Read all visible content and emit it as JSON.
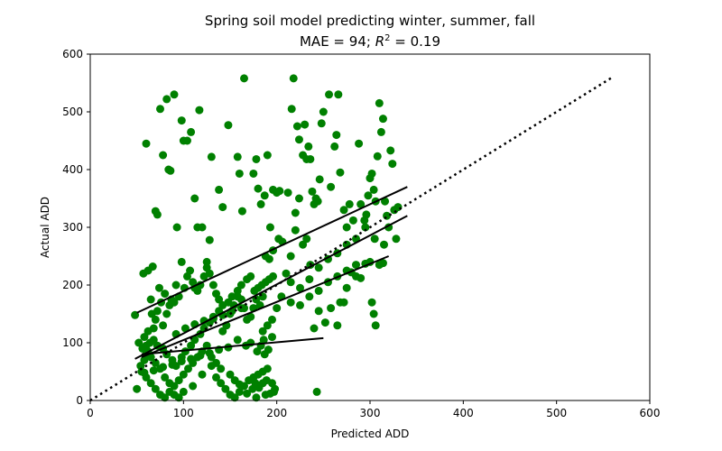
{
  "chart_data": {
    "type": "scatter",
    "title": "Spring soil model predicting winter, summer, fall",
    "subtitle_prefix": "MAE = 94; ",
    "subtitle_r": "R",
    "subtitle_exp": "2",
    "subtitle_suffix": " = 0.19",
    "xlabel": "Predicted ADD",
    "ylabel": "Actual ADD",
    "xlim": [
      0,
      600
    ],
    "ylim": [
      0,
      600
    ],
    "xticks": [
      0,
      100,
      200,
      300,
      400,
      500,
      600
    ],
    "yticks": [
      0,
      100,
      200,
      300,
      400,
      500,
      600
    ],
    "grid": false,
    "point_color": "#008000",
    "line_color": "#000000",
    "series": [
      {
        "points": [
          [
            48,
            148
          ],
          [
            57,
            220
          ],
          [
            60,
            445
          ],
          [
            62,
            225
          ],
          [
            65,
            175
          ],
          [
            67,
            232
          ],
          [
            70,
            328
          ],
          [
            72,
            322
          ],
          [
            75,
            505
          ],
          [
            78,
            425
          ],
          [
            82,
            522
          ],
          [
            84,
            400
          ],
          [
            86,
            398
          ],
          [
            90,
            530
          ],
          [
            93,
            300
          ],
          [
            98,
            485
          ],
          [
            100,
            450
          ],
          [
            104,
            450
          ],
          [
            108,
            465
          ],
          [
            112,
            350
          ],
          [
            115,
            300
          ],
          [
            117,
            503
          ],
          [
            120,
            300
          ],
          [
            125,
            240
          ],
          [
            128,
            278
          ],
          [
            130,
            422
          ],
          [
            138,
            365
          ],
          [
            142,
            335
          ],
          [
            148,
            477
          ],
          [
            158,
            422
          ],
          [
            160,
            393
          ],
          [
            163,
            328
          ],
          [
            165,
            558
          ],
          [
            175,
            393
          ],
          [
            178,
            418
          ],
          [
            180,
            367
          ],
          [
            183,
            340
          ],
          [
            187,
            355
          ],
          [
            190,
            425
          ],
          [
            193,
            300
          ],
          [
            196,
            365
          ],
          [
            200,
            360
          ],
          [
            203,
            363
          ],
          [
            212,
            360
          ],
          [
            216,
            505
          ],
          [
            218,
            558
          ],
          [
            220,
            295
          ],
          [
            222,
            475
          ],
          [
            224,
            452
          ],
          [
            228,
            425
          ],
          [
            230,
            478
          ],
          [
            232,
            418
          ],
          [
            234,
            440
          ],
          [
            236,
            418
          ],
          [
            238,
            362
          ],
          [
            240,
            340
          ],
          [
            242,
            350
          ],
          [
            244,
            345
          ],
          [
            246,
            383
          ],
          [
            248,
            480
          ],
          [
            250,
            500
          ],
          [
            256,
            530
          ],
          [
            258,
            370
          ],
          [
            262,
            440
          ],
          [
            264,
            460
          ],
          [
            266,
            530
          ],
          [
            268,
            395
          ],
          [
            272,
            330
          ],
          [
            275,
            300
          ],
          [
            278,
            340
          ],
          [
            282,
            312
          ],
          [
            288,
            445
          ],
          [
            290,
            340
          ],
          [
            294,
            312
          ],
          [
            296,
            322
          ],
          [
            298,
            355
          ],
          [
            300,
            385
          ],
          [
            302,
            393
          ],
          [
            304,
            365
          ],
          [
            306,
            345
          ],
          [
            308,
            423
          ],
          [
            310,
            515
          ],
          [
            312,
            465
          ],
          [
            314,
            488
          ],
          [
            316,
            345
          ],
          [
            318,
            320
          ],
          [
            320,
            300
          ],
          [
            322,
            433
          ],
          [
            324,
            410
          ],
          [
            326,
            330
          ],
          [
            328,
            280
          ],
          [
            330,
            335
          ],
          [
            302,
            170
          ],
          [
            304,
            150
          ],
          [
            306,
            130
          ],
          [
            300,
            240
          ],
          [
            310,
            235
          ],
          [
            314,
            238
          ],
          [
            295,
            237
          ],
          [
            290,
            212
          ],
          [
            285,
            215
          ],
          [
            280,
            222
          ],
          [
            275,
            195
          ],
          [
            272,
            170
          ],
          [
            268,
            170
          ],
          [
            265,
            130
          ],
          [
            258,
            160
          ],
          [
            252,
            135
          ],
          [
            245,
            155
          ],
          [
            240,
            125
          ],
          [
            236,
            235
          ],
          [
            232,
            280
          ],
          [
            228,
            270
          ],
          [
            224,
            350
          ],
          [
            220,
            325
          ],
          [
            215,
            250
          ],
          [
            210,
            220
          ],
          [
            206,
            275
          ],
          [
            202,
            280
          ],
          [
            196,
            260
          ],
          [
            192,
            245
          ],
          [
            188,
            250
          ],
          [
            185,
            180
          ],
          [
            182,
            165
          ],
          [
            178,
            175
          ],
          [
            175,
            160
          ],
          [
            172,
            145
          ],
          [
            168,
            140
          ],
          [
            165,
            160
          ],
          [
            162,
            175
          ],
          [
            158,
            180
          ],
          [
            154,
            165
          ],
          [
            150,
            150
          ],
          [
            146,
            130
          ],
          [
            142,
            120
          ],
          [
            138,
            175
          ],
          [
            135,
            185
          ],
          [
            132,
            200
          ],
          [
            128,
            220
          ],
          [
            125,
            230
          ],
          [
            122,
            215
          ],
          [
            118,
            200
          ],
          [
            115,
            190
          ],
          [
            112,
            195
          ],
          [
            110,
            205
          ],
          [
            107,
            225
          ],
          [
            104,
            215
          ],
          [
            101,
            195
          ],
          [
            98,
            240
          ],
          [
            95,
            180
          ],
          [
            92,
            200
          ],
          [
            90,
            170
          ],
          [
            87,
            175
          ],
          [
            85,
            165
          ],
          [
            82,
            150
          ],
          [
            80,
            185
          ],
          [
            78,
            130
          ],
          [
            76,
            170
          ],
          [
            74,
            195
          ],
          [
            72,
            155
          ],
          [
            70,
            140
          ],
          [
            68,
            125
          ],
          [
            66,
            150
          ],
          [
            64,
            100
          ],
          [
            62,
            85
          ],
          [
            60,
            80
          ],
          [
            58,
            70
          ],
          [
            56,
            90
          ],
          [
            54,
            60
          ],
          [
            52,
            100
          ],
          [
            50,
            20
          ],
          [
            55,
            50
          ],
          [
            60,
            40
          ],
          [
            65,
            30
          ],
          [
            70,
            20
          ],
          [
            75,
            10
          ],
          [
            80,
            5
          ],
          [
            85,
            15
          ],
          [
            90,
            25
          ],
          [
            95,
            35
          ],
          [
            100,
            45
          ],
          [
            105,
            55
          ],
          [
            110,
            65
          ],
          [
            115,
            75
          ],
          [
            120,
            85
          ],
          [
            125,
            95
          ],
          [
            130,
            60
          ],
          [
            135,
            40
          ],
          [
            140,
            30
          ],
          [
            145,
            20
          ],
          [
            150,
            10
          ],
          [
            155,
            5
          ],
          [
            160,
            15
          ],
          [
            165,
            25
          ],
          [
            170,
            35
          ],
          [
            175,
            40
          ],
          [
            180,
            45
          ],
          [
            185,
            50
          ],
          [
            190,
            55
          ],
          [
            195,
            30
          ],
          [
            198,
            20
          ],
          [
            188,
            10
          ],
          [
            178,
            5
          ],
          [
            168,
            12
          ],
          [
            160,
            28
          ],
          [
            155,
            35
          ],
          [
            150,
            45
          ],
          [
            140,
            55
          ],
          [
            135,
            65
          ],
          [
            130,
            75
          ],
          [
            120,
            45
          ],
          [
            110,
            25
          ],
          [
            100,
            15
          ],
          [
            95,
            5
          ],
          [
            90,
            10
          ],
          [
            85,
            30
          ],
          [
            80,
            40
          ],
          [
            75,
            55
          ],
          [
            70,
            65
          ],
          [
            65,
            75
          ],
          [
            60,
            95
          ],
          [
            58,
            110
          ],
          [
            62,
            120
          ],
          [
            68,
            105
          ],
          [
            72,
            95
          ],
          [
            78,
            90
          ],
          [
            82,
            80
          ],
          [
            88,
            70
          ],
          [
            92,
            60
          ],
          [
            98,
            75
          ],
          [
            102,
            85
          ],
          [
            108,
            95
          ],
          [
            112,
            105
          ],
          [
            118,
            115
          ],
          [
            122,
            125
          ],
          [
            128,
            135
          ],
          [
            132,
            145
          ],
          [
            138,
            155
          ],
          [
            142,
            165
          ],
          [
            148,
            170
          ],
          [
            152,
            180
          ],
          [
            158,
            190
          ],
          [
            162,
            200
          ],
          [
            168,
            210
          ],
          [
            172,
            215
          ],
          [
            176,
            190
          ],
          [
            180,
            195
          ],
          [
            184,
            200
          ],
          [
            188,
            205
          ],
          [
            192,
            210
          ],
          [
            196,
            215
          ],
          [
            174,
            20
          ],
          [
            177,
            30
          ],
          [
            181,
            22
          ],
          [
            185,
            30
          ],
          [
            189,
            35
          ],
          [
            193,
            12
          ],
          [
            197,
            15
          ],
          [
            179,
            85
          ],
          [
            183,
            95
          ],
          [
            187,
            80
          ],
          [
            191,
            88
          ],
          [
            186,
            105
          ],
          [
            195,
            110
          ],
          [
            243,
            15
          ],
          [
            167,
            95
          ],
          [
            172,
            100
          ],
          [
            158,
            105
          ],
          [
            148,
            92
          ],
          [
            138,
            88
          ],
          [
            128,
            82
          ],
          [
            118,
            78
          ],
          [
            108,
            72
          ],
          [
            98,
            68
          ],
          [
            88,
            62
          ],
          [
            78,
            58
          ],
          [
            68,
            52
          ],
          [
            58,
            48
          ],
          [
            92,
            115
          ],
          [
            102,
            125
          ],
          [
            112,
            132
          ],
          [
            122,
            138
          ],
          [
            132,
            142
          ],
          [
            142,
            148
          ],
          [
            152,
            155
          ],
          [
            162,
            160
          ],
          [
            215,
            205
          ],
          [
            225,
            195
          ],
          [
            235,
            210
          ],
          [
            245,
            230
          ],
          [
            255,
            245
          ],
          [
            265,
            255
          ],
          [
            275,
            270
          ],
          [
            285,
            280
          ],
          [
            295,
            300
          ],
          [
            305,
            280
          ],
          [
            315,
            270
          ],
          [
            205,
            180
          ],
          [
            200,
            160
          ],
          [
            195,
            140
          ],
          [
            190,
            130
          ],
          [
            185,
            120
          ],
          [
            215,
            170
          ],
          [
            225,
            165
          ],
          [
            235,
            180
          ],
          [
            245,
            190
          ],
          [
            255,
            205
          ],
          [
            265,
            215
          ],
          [
            275,
            225
          ],
          [
            285,
            235
          ]
        ]
      }
    ],
    "lines": [
      {
        "style": "solid",
        "points": [
          [
            50,
            152
          ],
          [
            340,
            370
          ]
        ]
      },
      {
        "style": "solid",
        "points": [
          [
            48,
            72
          ],
          [
            340,
            320
          ]
        ]
      },
      {
        "style": "solid",
        "points": [
          [
            55,
            75
          ],
          [
            320,
            250
          ]
        ]
      },
      {
        "style": "solid",
        "points": [
          [
            55,
            80
          ],
          [
            250,
            108
          ]
        ]
      },
      {
        "style": "dotted",
        "points": [
          [
            0,
            0
          ],
          [
            560,
            560
          ]
        ]
      }
    ]
  }
}
